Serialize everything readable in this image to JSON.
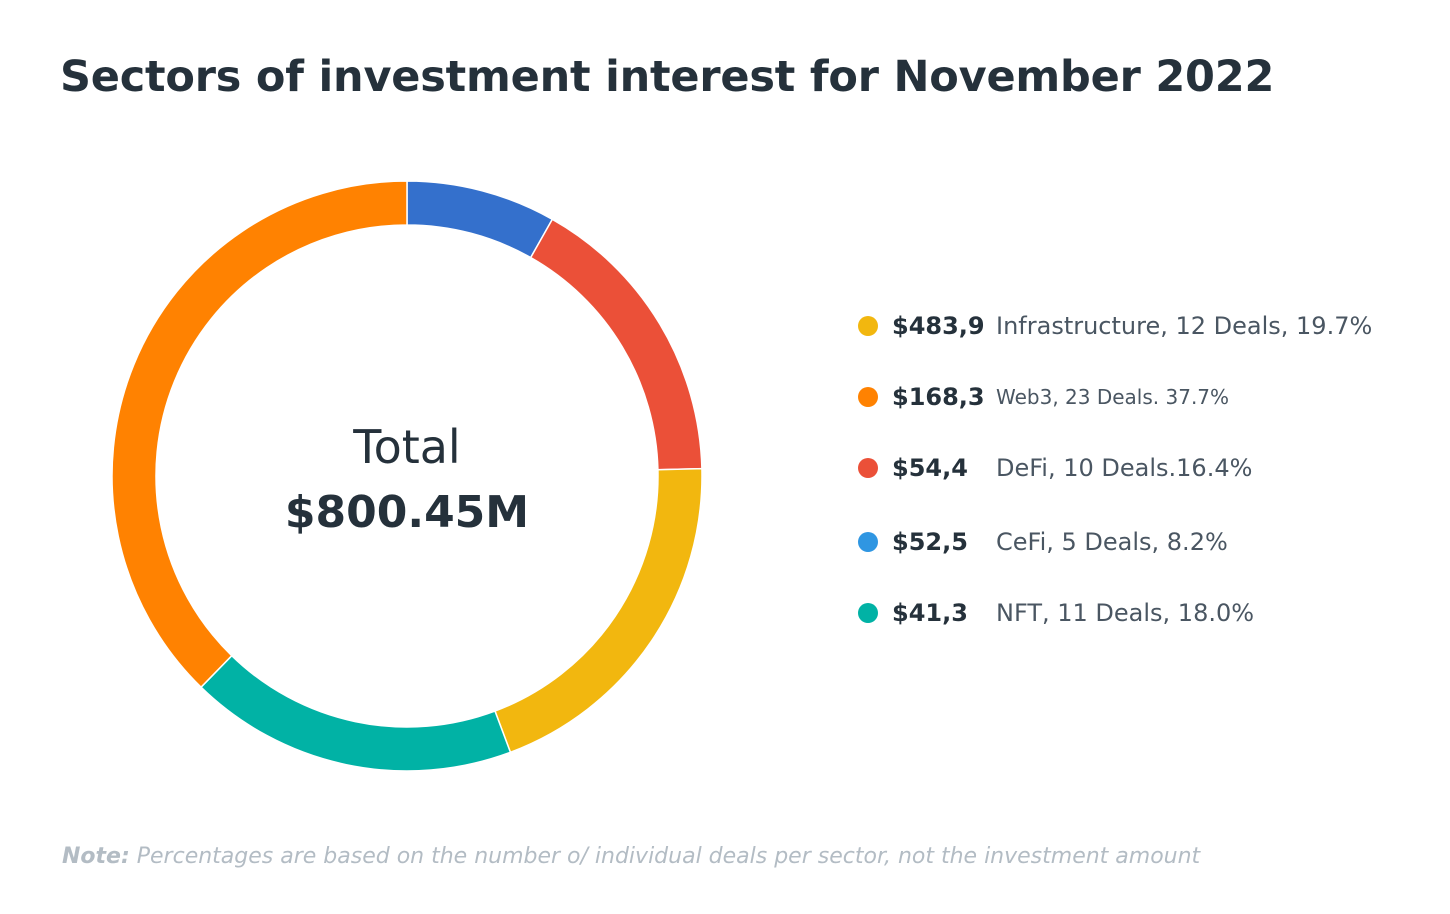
{
  "title": "Sectors of investment interest for November 2022",
  "center": {
    "label": "Total",
    "value": "$800.45M"
  },
  "chart_data": {
    "type": "donut",
    "title": "Sectors of investment interest for November 2022",
    "ring_segments_clockwise_from_top": [
      {
        "color": "#3470CC",
        "percent": 8.2
      },
      {
        "color": "#EB5038",
        "percent": 16.4
      },
      {
        "color": "#F2B70F",
        "percent": 19.7
      },
      {
        "color": "#01B2A5",
        "percent": 18.0
      },
      {
        "color": "#FF8201",
        "percent": 37.7
      }
    ],
    "legend": [
      {
        "amount": "$483,9",
        "label": "Infrastructure, 12 Deals, 19.7%",
        "color": "#F2B70F",
        "value": 483.9,
        "deals": 12,
        "percent": 19.7
      },
      {
        "amount": "$168,3",
        "label": "Web3, 23 Deals. 37.7%",
        "color": "#FF8201",
        "value": 168.3,
        "deals": 23,
        "percent": 37.7
      },
      {
        "amount": "$54,4",
        "label": "DeFi, 10 Deals.16.4%",
        "color": "#EB5038",
        "value": 54.4,
        "deals": 10,
        "percent": 16.4
      },
      {
        "amount": "$52,5",
        "label": "CeFi, 5 Deals, 8.2%",
        "color": "#2F96E2",
        "value": 52.5,
        "deals": 5,
        "percent": 8.2
      },
      {
        "amount": "$41,3",
        "label": "NFT, 11 Deals, 18.0%",
        "color": "#01B2A5",
        "value": 41.3,
        "deals": 11,
        "percent": 18.0
      }
    ]
  },
  "note": {
    "prefix": "Note:",
    "text": " Percentages are based on the number o/ individual deals per sector, not the investment amount"
  }
}
